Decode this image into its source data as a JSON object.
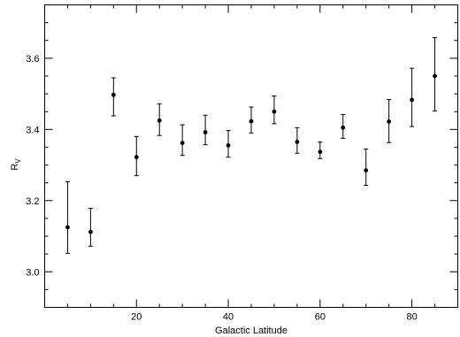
{
  "chart_data": {
    "type": "scatter",
    "title": "",
    "xlabel": "Galactic Latitude",
    "ylabel": "R",
    "ylabel_subscript": "V",
    "xlim": [
      0,
      90
    ],
    "ylim": [
      2.9,
      3.75
    ],
    "x_ticks": [
      20,
      40,
      60,
      80
    ],
    "y_ticks": [
      3.0,
      3.2,
      3.4,
      3.6
    ],
    "x_tick_labels": [
      "20",
      "40",
      "60",
      "80"
    ],
    "y_tick_labels": [
      "3.0",
      "3.2",
      "3.4",
      "3.6"
    ],
    "grid": false,
    "error_bars": true,
    "marker_color": "#000000",
    "points": [
      {
        "x": 5,
        "y": 3.125,
        "lo": 3.052,
        "hi": 3.253
      },
      {
        "x": 10,
        "y": 3.112,
        "lo": 3.072,
        "hi": 3.178
      },
      {
        "x": 15,
        "y": 3.497,
        "lo": 3.438,
        "hi": 3.545
      },
      {
        "x": 20,
        "y": 3.322,
        "lo": 3.27,
        "hi": 3.38
      },
      {
        "x": 25,
        "y": 3.425,
        "lo": 3.383,
        "hi": 3.472
      },
      {
        "x": 30,
        "y": 3.362,
        "lo": 3.327,
        "hi": 3.413
      },
      {
        "x": 35,
        "y": 3.392,
        "lo": 3.357,
        "hi": 3.44
      },
      {
        "x": 40,
        "y": 3.355,
        "lo": 3.322,
        "hi": 3.397
      },
      {
        "x": 45,
        "y": 3.423,
        "lo": 3.39,
        "hi": 3.463
      },
      {
        "x": 50,
        "y": 3.45,
        "lo": 3.416,
        "hi": 3.494
      },
      {
        "x": 55,
        "y": 3.365,
        "lo": 3.333,
        "hi": 3.405
      },
      {
        "x": 60,
        "y": 3.337,
        "lo": 3.318,
        "hi": 3.365
      },
      {
        "x": 65,
        "y": 3.405,
        "lo": 3.375,
        "hi": 3.442
      },
      {
        "x": 70,
        "y": 3.285,
        "lo": 3.243,
        "hi": 3.345
      },
      {
        "x": 75,
        "y": 3.422,
        "lo": 3.363,
        "hi": 3.484
      },
      {
        "x": 80,
        "y": 3.483,
        "lo": 3.408,
        "hi": 3.572
      },
      {
        "x": 85,
        "y": 3.55,
        "lo": 3.452,
        "hi": 3.658
      }
    ]
  }
}
